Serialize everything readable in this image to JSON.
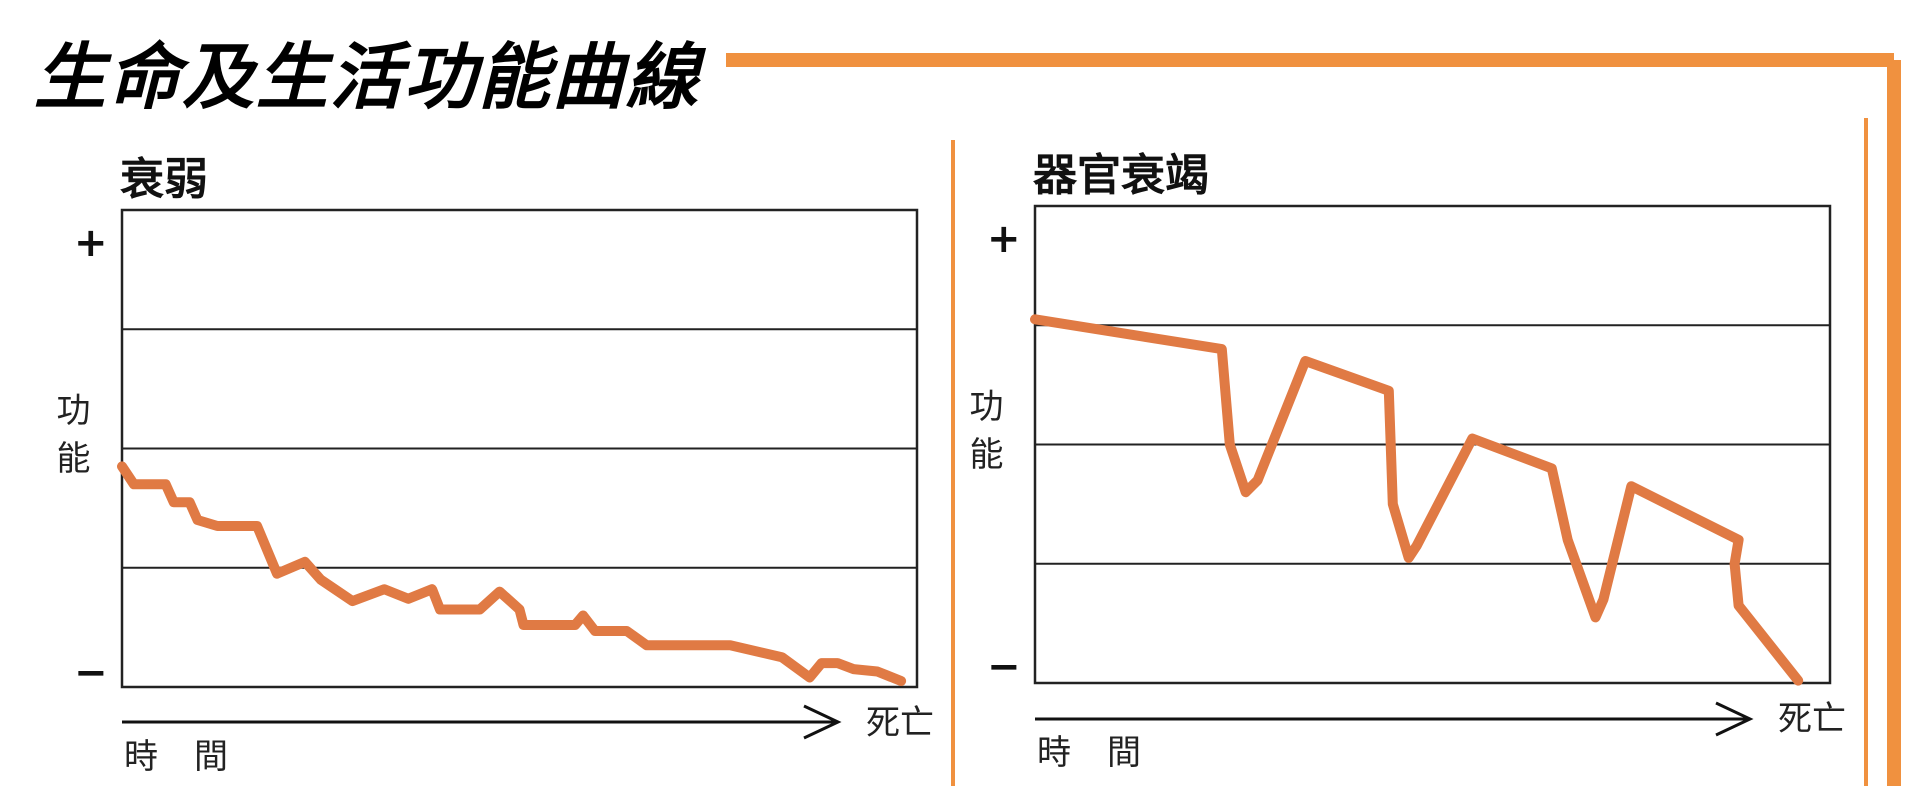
{
  "page": {
    "title": "生命及生活功能曲線",
    "frame_color": "#f0913f"
  },
  "chart_data": [
    {
      "type": "line",
      "title": "衰弱",
      "ylabel": "功能",
      "xlabel": "時間",
      "x_end_label": "死亡",
      "y_max_label": "+",
      "y_min_label": "−",
      "ylim": [
        0,
        4
      ],
      "xlim": [
        0,
        100
      ],
      "grid": true,
      "line_color": "#e07a44",
      "series": [
        {
          "values": [
            [
              0,
              1.85
            ],
            [
              1.5,
              1.7
            ],
            [
              5.5,
              1.7
            ],
            [
              6.5,
              1.55
            ],
            [
              8.5,
              1.55
            ],
            [
              9.5,
              1.4
            ],
            [
              12,
              1.35
            ],
            [
              17,
              1.35
            ],
            [
              19.5,
              0.95
            ],
            [
              23,
              1.05
            ],
            [
              25,
              0.9
            ],
            [
              29,
              0.72
            ],
            [
              33,
              0.82
            ],
            [
              36,
              0.74
            ],
            [
              39,
              0.82
            ],
            [
              40,
              0.65
            ],
            [
              45,
              0.65
            ],
            [
              47.5,
              0.8
            ],
            [
              50,
              0.65
            ],
            [
              50.5,
              0.52
            ],
            [
              57,
              0.52
            ],
            [
              58,
              0.6
            ],
            [
              59.5,
              0.47
            ],
            [
              63.5,
              0.47
            ],
            [
              66,
              0.35
            ],
            [
              76.5,
              0.35
            ],
            [
              83,
              0.25
            ],
            [
              86.5,
              0.08
            ],
            [
              88,
              0.2
            ],
            [
              90,
              0.2
            ],
            [
              92,
              0.15
            ],
            [
              95,
              0.13
            ],
            [
              98,
              0.05
            ]
          ]
        }
      ]
    },
    {
      "type": "line",
      "title": "器官衰竭",
      "ylabel": "功能",
      "xlabel": "時間",
      "x_end_label": "死亡",
      "y_max_label": "+",
      "y_min_label": "−",
      "ylim": [
        0,
        4
      ],
      "xlim": [
        0,
        100
      ],
      "grid": true,
      "line_color": "#e07a44",
      "series": [
        {
          "values": [
            [
              0,
              3.05
            ],
            [
              23.5,
              2.8
            ],
            [
              24.5,
              2.0
            ],
            [
              26.5,
              1.6
            ],
            [
              28,
              1.7
            ],
            [
              34,
              2.7
            ],
            [
              44.5,
              2.45
            ],
            [
              45,
              1.5
            ],
            [
              47,
              1.05
            ],
            [
              48,
              1.15
            ],
            [
              55,
              2.05
            ],
            [
              65,
              1.8
            ],
            [
              67,
              1.2
            ],
            [
              70.5,
              0.55
            ],
            [
              71.5,
              0.7
            ],
            [
              75,
              1.65
            ],
            [
              88.5,
              1.2
            ],
            [
              88,
              1.0
            ],
            [
              88.5,
              0.65
            ],
            [
              96,
              0.02
            ]
          ]
        }
      ]
    }
  ]
}
